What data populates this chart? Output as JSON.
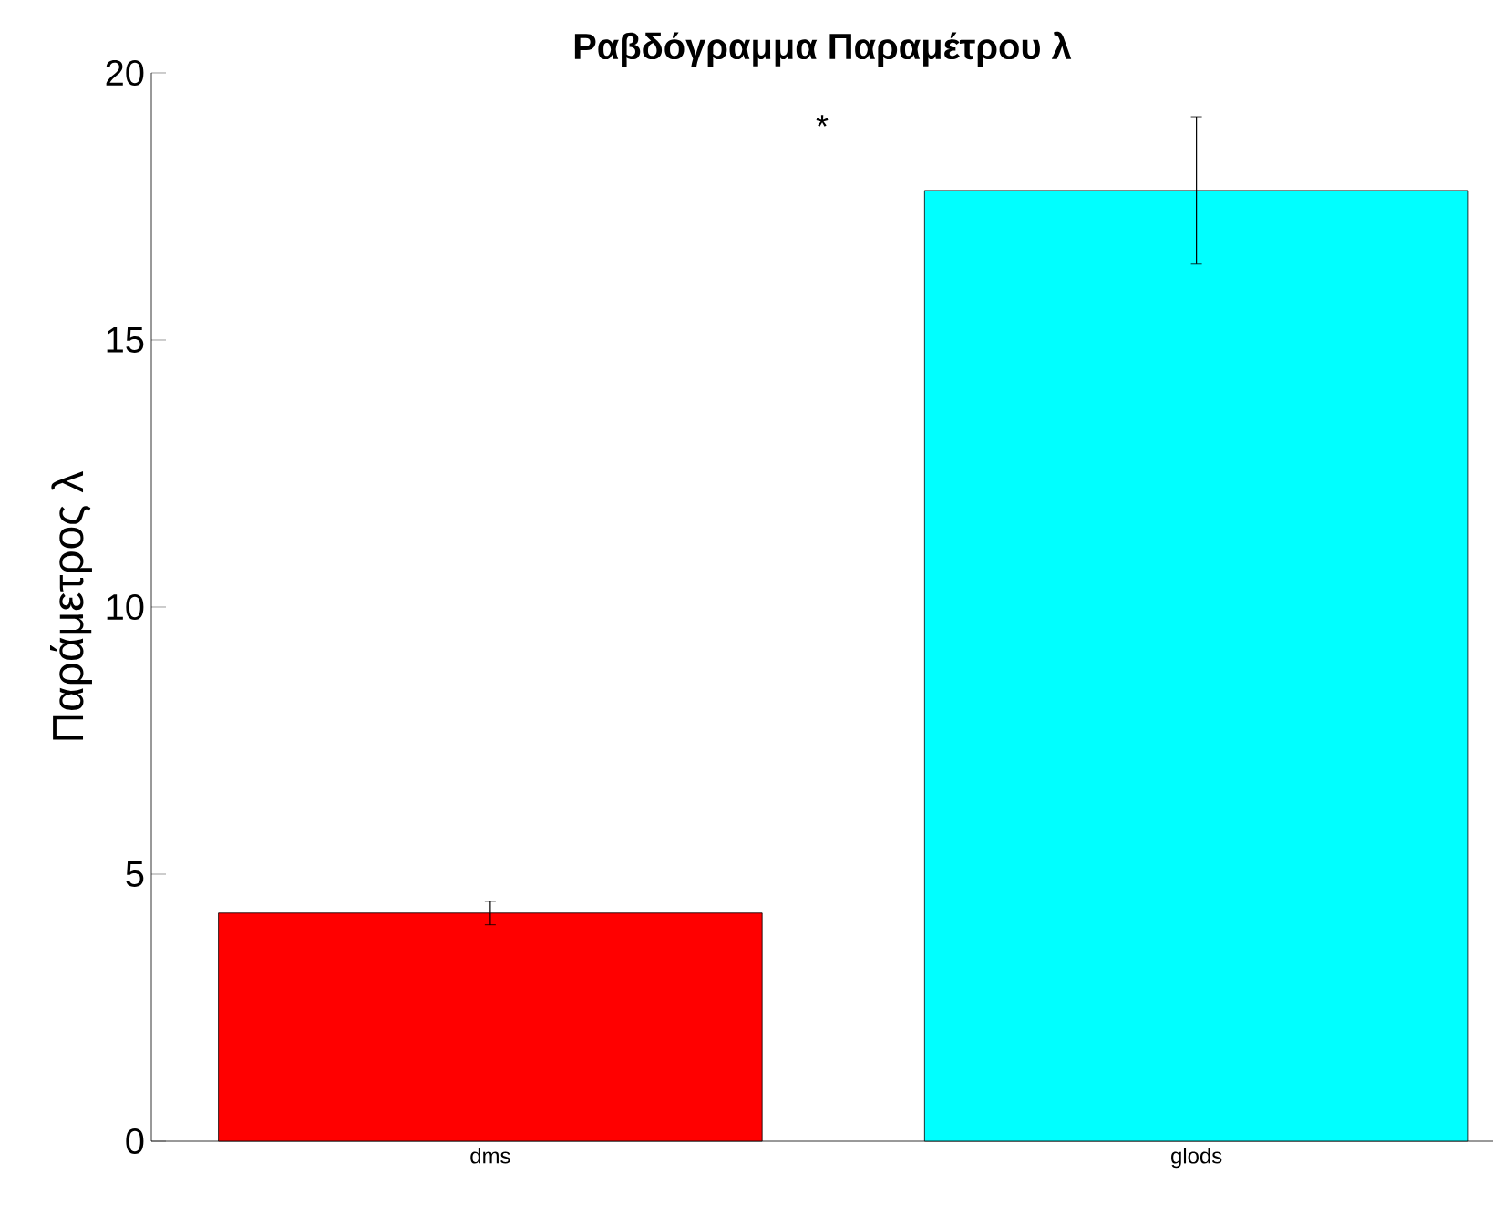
{
  "chart_data": {
    "type": "bar",
    "title": "Ραβδόγραμμα Παραμέτρου λ",
    "ylabel": "Παράμετρος λ",
    "categories": [
      "dms",
      "glods"
    ],
    "values": [
      4.27,
      17.8
    ],
    "errors": [
      0.22,
      1.38
    ],
    "colors": [
      "#ff0000",
      "#00ffff"
    ],
    "ylim": [
      0,
      20
    ],
    "yticks": [
      0,
      5,
      10,
      15,
      20
    ],
    "annotations": [
      "*"
    ]
  }
}
